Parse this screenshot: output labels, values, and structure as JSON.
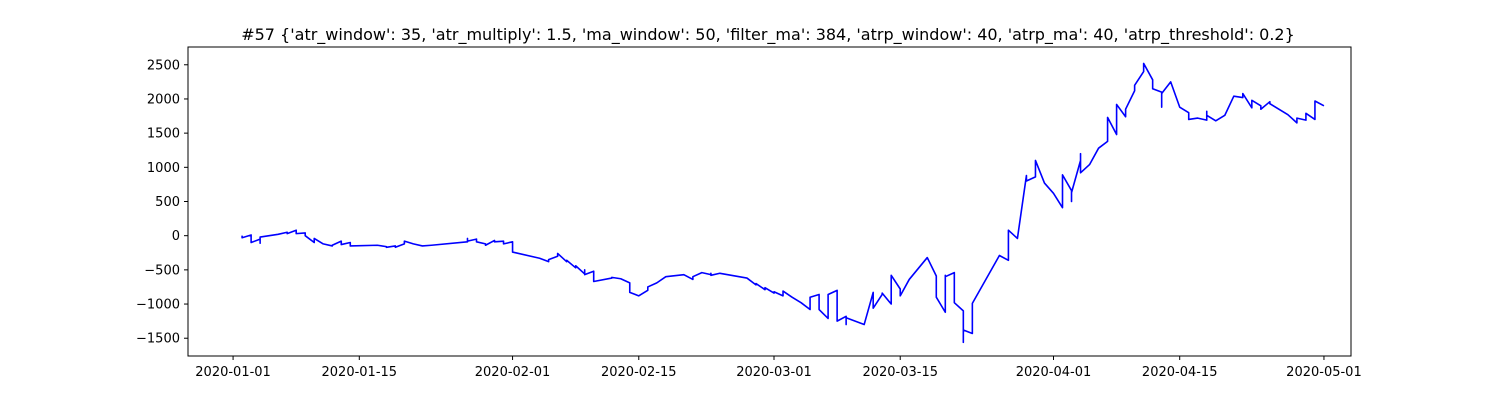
{
  "chart_data": {
    "type": "line",
    "title": "#57 {'atr_window': 35, 'atr_multiply': 1.5, 'ma_window': 50, 'filter_ma': 384, 'atrp_window': 40, 'atrp_ma': 40, 'atrp_threshold': 0.2}",
    "xlabel": "",
    "ylabel": "",
    "xlim": [
      "2019-12-27",
      "2020-05-04"
    ],
    "ylim": [
      -1760,
      2760
    ],
    "xticks": [
      {
        "date": "2020-01-01",
        "label": "2020-01-01"
      },
      {
        "date": "2020-01-15",
        "label": "2020-01-15"
      },
      {
        "date": "2020-02-01",
        "label": "2020-02-01"
      },
      {
        "date": "2020-02-15",
        "label": "2020-02-15"
      },
      {
        "date": "2020-03-01",
        "label": "2020-03-01"
      },
      {
        "date": "2020-03-15",
        "label": "2020-03-15"
      },
      {
        "date": "2020-04-01",
        "label": "2020-04-01"
      },
      {
        "date": "2020-04-15",
        "label": "2020-04-15"
      },
      {
        "date": "2020-05-01",
        "label": "2020-05-01"
      }
    ],
    "yticks": [
      -1500,
      -1000,
      -500,
      0,
      500,
      1000,
      1500,
      2000,
      2500
    ],
    "grid": false,
    "line_color": "#0000ff",
    "series": [
      {
        "points": [
          [
            "2020-01-02",
            0
          ],
          [
            "2020-01-02",
            -30
          ],
          [
            "2020-01-03",
            10
          ],
          [
            "2020-01-03",
            -40
          ],
          [
            "2020-01-03",
            -100
          ],
          [
            "2020-01-04",
            -50
          ],
          [
            "2020-01-04",
            -110
          ],
          [
            "2020-01-04",
            -20
          ],
          [
            "2020-01-06",
            20
          ],
          [
            "2020-01-07",
            50
          ],
          [
            "2020-01-07",
            30
          ],
          [
            "2020-01-08",
            80
          ],
          [
            "2020-01-08",
            30
          ],
          [
            "2020-01-09",
            40
          ],
          [
            "2020-01-09",
            0
          ],
          [
            "2020-01-10",
            -100
          ],
          [
            "2020-01-10",
            -40
          ],
          [
            "2020-01-11",
            -120
          ],
          [
            "2020-01-12",
            -150
          ],
          [
            "2020-01-12",
            -140
          ],
          [
            "2020-01-13",
            -80
          ],
          [
            "2020-01-13",
            -130
          ],
          [
            "2020-01-14",
            -100
          ],
          [
            "2020-01-14",
            -150
          ],
          [
            "2020-01-17",
            -140
          ],
          [
            "2020-01-18",
            -160
          ],
          [
            "2020-01-18",
            -170
          ],
          [
            "2020-01-19",
            -150
          ],
          [
            "2020-01-19",
            -170
          ],
          [
            "2020-01-20",
            -120
          ],
          [
            "2020-01-20",
            -80
          ],
          [
            "2020-01-21",
            -120
          ],
          [
            "2020-01-22",
            -150
          ],
          [
            "2020-01-23",
            -140
          ],
          [
            "2020-01-27",
            -90
          ],
          [
            "2020-01-27",
            -40
          ],
          [
            "2020-01-27",
            -80
          ],
          [
            "2020-01-28",
            -50
          ],
          [
            "2020-01-28",
            -90
          ],
          [
            "2020-01-29",
            -120
          ],
          [
            "2020-01-29",
            -140
          ],
          [
            "2020-01-30",
            -70
          ],
          [
            "2020-01-30",
            -90
          ],
          [
            "2020-01-31",
            -80
          ],
          [
            "2020-01-31",
            -120
          ],
          [
            "2020-02-01",
            -90
          ],
          [
            "2020-02-01",
            -240
          ],
          [
            "2020-02-04",
            -330
          ],
          [
            "2020-02-05",
            -380
          ],
          [
            "2020-02-05",
            -350
          ],
          [
            "2020-02-06",
            -300
          ],
          [
            "2020-02-06",
            -260
          ],
          [
            "2020-02-07",
            -380
          ],
          [
            "2020-02-07",
            -360
          ],
          [
            "2020-02-08",
            -470
          ],
          [
            "2020-02-08",
            -440
          ],
          [
            "2020-02-09",
            -560
          ],
          [
            "2020-02-09",
            -500
          ],
          [
            "2020-02-09",
            -570
          ],
          [
            "2020-02-10",
            -520
          ],
          [
            "2020-02-10",
            -670
          ],
          [
            "2020-02-12",
            -620
          ],
          [
            "2020-02-12",
            -610
          ],
          [
            "2020-02-13",
            -630
          ],
          [
            "2020-02-13",
            -630
          ],
          [
            "2020-02-14",
            -690
          ],
          [
            "2020-02-14",
            -830
          ],
          [
            "2020-02-15",
            -880
          ],
          [
            "2020-02-16",
            -800
          ],
          [
            "2020-02-16",
            -750
          ],
          [
            "2020-02-17",
            -690
          ],
          [
            "2020-02-18",
            -600
          ],
          [
            "2020-02-20",
            -570
          ],
          [
            "2020-02-21",
            -640
          ],
          [
            "2020-02-21",
            -600
          ],
          [
            "2020-02-22",
            -540
          ],
          [
            "2020-02-23",
            -570
          ],
          [
            "2020-02-23",
            -550
          ],
          [
            "2020-02-23",
            -580
          ],
          [
            "2020-02-24",
            -550
          ],
          [
            "2020-02-27",
            -620
          ],
          [
            "2020-02-28",
            -720
          ],
          [
            "2020-02-28",
            -700
          ],
          [
            "2020-02-29",
            -790
          ],
          [
            "2020-02-29",
            -760
          ],
          [
            "2020-03-01",
            -840
          ],
          [
            "2020-03-01",
            -820
          ],
          [
            "2020-03-02",
            -880
          ],
          [
            "2020-03-02",
            -810
          ],
          [
            "2020-03-03",
            -900
          ],
          [
            "2020-03-04",
            -980
          ],
          [
            "2020-03-05",
            -1080
          ],
          [
            "2020-03-05",
            -1020
          ],
          [
            "2020-03-05",
            -900
          ],
          [
            "2020-03-06",
            -860
          ],
          [
            "2020-03-06",
            -1080
          ],
          [
            "2020-03-07",
            -1210
          ],
          [
            "2020-03-07",
            -860
          ],
          [
            "2020-03-08",
            -800
          ],
          [
            "2020-03-08",
            -1250
          ],
          [
            "2020-03-09",
            -1180
          ],
          [
            "2020-03-09",
            -1300
          ],
          [
            "2020-03-09",
            -1200
          ],
          [
            "2020-03-11",
            -1300
          ],
          [
            "2020-03-12",
            -830
          ],
          [
            "2020-03-12",
            -1060
          ],
          [
            "2020-03-13",
            -860
          ],
          [
            "2020-03-13",
            -840
          ],
          [
            "2020-03-14",
            -1000
          ],
          [
            "2020-03-14",
            -580
          ],
          [
            "2020-03-15",
            -780
          ],
          [
            "2020-03-15",
            -880
          ],
          [
            "2020-03-16",
            -640
          ],
          [
            "2020-03-18",
            -320
          ],
          [
            "2020-03-19",
            -590
          ],
          [
            "2020-03-19",
            -900
          ],
          [
            "2020-03-20",
            -1120
          ],
          [
            "2020-03-20",
            -580
          ],
          [
            "2020-03-20",
            -600
          ],
          [
            "2020-03-21",
            -540
          ],
          [
            "2020-03-21",
            -980
          ],
          [
            "2020-03-22",
            -1100
          ],
          [
            "2020-03-22",
            -1560
          ],
          [
            "2020-03-22",
            -1380
          ],
          [
            "2020-03-23",
            -1430
          ],
          [
            "2020-03-23",
            -990
          ],
          [
            "2020-03-26",
            -290
          ],
          [
            "2020-03-27",
            -360
          ],
          [
            "2020-03-27",
            80
          ],
          [
            "2020-03-28",
            -40
          ],
          [
            "2020-03-29",
            880
          ],
          [
            "2020-03-29",
            800
          ],
          [
            "2020-03-30",
            860
          ],
          [
            "2020-03-30",
            1100
          ],
          [
            "2020-03-31",
            770
          ],
          [
            "2020-04-01",
            620
          ],
          [
            "2020-04-02",
            410
          ],
          [
            "2020-04-02",
            890
          ],
          [
            "2020-04-03",
            660
          ],
          [
            "2020-04-03",
            500
          ],
          [
            "2020-04-03",
            630
          ],
          [
            "2020-04-04",
            1100
          ],
          [
            "2020-04-04",
            1000
          ],
          [
            "2020-04-04",
            1200
          ],
          [
            "2020-04-04",
            920
          ],
          [
            "2020-04-05",
            1040
          ],
          [
            "2020-04-06",
            1280
          ],
          [
            "2020-04-07",
            1380
          ],
          [
            "2020-04-07",
            1730
          ],
          [
            "2020-04-08",
            1480
          ],
          [
            "2020-04-08",
            1920
          ],
          [
            "2020-04-09",
            1740
          ],
          [
            "2020-04-09",
            1850
          ],
          [
            "2020-04-10",
            2120
          ],
          [
            "2020-04-10",
            2200
          ],
          [
            "2020-04-11",
            2400
          ],
          [
            "2020-04-11",
            2520
          ],
          [
            "2020-04-12",
            2280
          ],
          [
            "2020-04-12",
            2150
          ],
          [
            "2020-04-13",
            2100
          ],
          [
            "2020-04-13",
            1880
          ],
          [
            "2020-04-13",
            2080
          ],
          [
            "2020-04-14",
            2250
          ],
          [
            "2020-04-15",
            1880
          ],
          [
            "2020-04-16",
            1800
          ],
          [
            "2020-04-16",
            1700
          ],
          [
            "2020-04-17",
            1720
          ],
          [
            "2020-04-18",
            1690
          ],
          [
            "2020-04-18",
            1820
          ],
          [
            "2020-04-18",
            1760
          ],
          [
            "2020-04-19",
            1680
          ],
          [
            "2020-04-20",
            1760
          ],
          [
            "2020-04-21",
            2040
          ],
          [
            "2020-04-22",
            2020
          ],
          [
            "2020-04-22",
            2080
          ],
          [
            "2020-04-23",
            1870
          ],
          [
            "2020-04-23",
            1980
          ],
          [
            "2020-04-24",
            1900
          ],
          [
            "2020-04-24",
            1850
          ],
          [
            "2020-04-25",
            1960
          ],
          [
            "2020-04-25",
            1930
          ],
          [
            "2020-04-27",
            1770
          ],
          [
            "2020-04-28",
            1650
          ],
          [
            "2020-04-28",
            1720
          ],
          [
            "2020-04-29",
            1690
          ],
          [
            "2020-04-29",
            1790
          ],
          [
            "2020-04-30",
            1700
          ],
          [
            "2020-04-30",
            1850
          ],
          [
            "2020-04-30",
            1970
          ],
          [
            "2020-05-01",
            1900
          ]
        ]
      }
    ]
  }
}
